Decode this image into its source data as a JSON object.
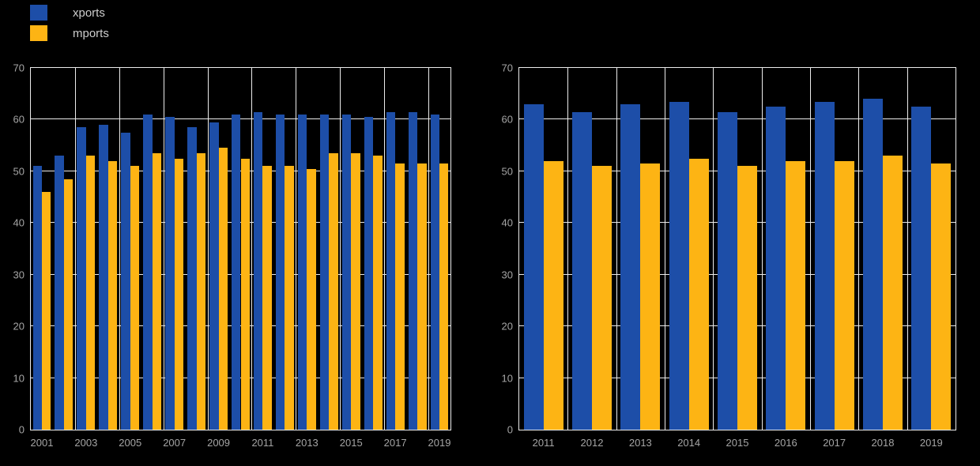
{
  "background": "#000000",
  "legend": {
    "items": [
      {
        "label": "xports",
        "color": "#1d4ea8"
      },
      {
        "label": "mports",
        "color": "#fdb414"
      }
    ]
  },
  "chart_data": [
    {
      "type": "bar",
      "title": "",
      "xlabel": "",
      "ylabel": "",
      "categories": [
        "2001",
        "2002",
        "2003",
        "2004",
        "2005",
        "2006",
        "2007",
        "2008",
        "2009",
        "2010",
        "2011",
        "2012",
        "2013",
        "2014",
        "2015",
        "2016",
        "2017",
        "2018",
        "2019"
      ],
      "series": [
        {
          "name": "xports",
          "color": "#1d4ea8",
          "values": [
            51,
            53,
            58.5,
            59,
            57.5,
            61,
            60.5,
            58.5,
            59.5,
            61,
            61.5,
            61,
            61,
            61,
            61,
            60.5,
            61.5,
            61.5,
            61
          ]
        },
        {
          "name": "mports",
          "color": "#fdb414",
          "values": [
            46,
            48.5,
            53,
            52,
            51,
            53.5,
            52.5,
            53.5,
            54.5,
            52.5,
            51,
            51,
            50.5,
            53.5,
            53.5,
            53,
            51.5,
            51.5,
            51.5
          ]
        }
      ],
      "ylim": [
        0,
        70
      ],
      "yticks": [
        0,
        10,
        20,
        30,
        40,
        50,
        60,
        70
      ],
      "xticks": {
        "labels": [
          "2001",
          "2003",
          "2005",
          "2007",
          "2009",
          "2011",
          "2013",
          "2015",
          "2017",
          "2019"
        ],
        "indices": [
          0,
          2,
          4,
          6,
          8,
          10,
          12,
          14,
          16,
          18
        ]
      },
      "grid": true,
      "vgrid_step": 2,
      "legend_position": "top-left-outside"
    },
    {
      "type": "bar",
      "title": "",
      "xlabel": "",
      "ylabel": "",
      "categories": [
        "2011",
        "2012",
        "2013",
        "2014",
        "2015",
        "2016",
        "2017",
        "2018",
        "2019"
      ],
      "series": [
        {
          "name": "xports",
          "color": "#1d4ea8",
          "values": [
            63,
            61.5,
            63,
            63.5,
            61.5,
            62.5,
            63.5,
            64,
            62.5
          ]
        },
        {
          "name": "mports",
          "color": "#fdb414",
          "values": [
            52,
            51,
            51.5,
            52.5,
            51,
            52,
            52,
            53,
            51.5
          ]
        }
      ],
      "ylim": [
        0,
        70
      ],
      "yticks": [
        0,
        10,
        20,
        30,
        40,
        50,
        60,
        70
      ],
      "xticks": {
        "labels": [
          "2011",
          "2012",
          "2013",
          "2014",
          "2015",
          "2016",
          "2017",
          "2018",
          "2019"
        ],
        "indices": [
          0,
          1,
          2,
          3,
          4,
          5,
          6,
          7,
          8
        ]
      },
      "grid": true,
      "vgrid_step": 1,
      "legend_position": "none"
    }
  ]
}
